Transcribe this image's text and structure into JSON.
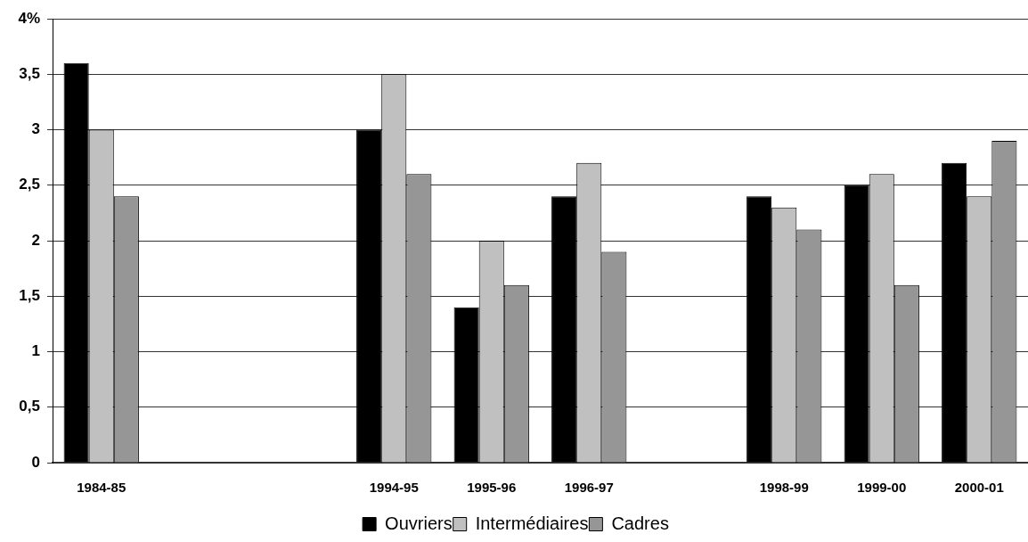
{
  "chart_data": {
    "type": "bar",
    "categories": [
      "1984-85",
      null,
      null,
      "1994-95",
      "1995-96",
      "1996-97",
      null,
      "1998-99",
      "1999-00",
      "2000-01"
    ],
    "series": [
      {
        "name": "Ouvriers",
        "color": "#000000",
        "values": [
          3.6,
          null,
          null,
          3.0,
          1.4,
          2.4,
          null,
          2.4,
          2.5,
          2.7
        ]
      },
      {
        "name": "Intermédiaires",
        "color": "#c0c0c0",
        "values": [
          3.0,
          null,
          null,
          3.5,
          2.0,
          2.7,
          null,
          2.3,
          2.6,
          2.4
        ]
      },
      {
        "name": "Cadres",
        "color": "#969696",
        "values": [
          2.4,
          null,
          null,
          2.6,
          1.6,
          1.9,
          null,
          2.1,
          1.6,
          2.9
        ]
      }
    ],
    "ylim": [
      0,
      4
    ],
    "yticks": [
      0,
      {
        "value": 0.5,
        "label": "0,5"
      },
      1,
      {
        "value": 1.5,
        "label": "1,5"
      },
      2,
      {
        "value": 2.5,
        "label": "2,5"
      },
      3,
      {
        "value": 3.5,
        "label": "3,5"
      },
      {
        "value": 4,
        "label": "4%"
      }
    ],
    "grid": "y",
    "legend": "bottom"
  }
}
